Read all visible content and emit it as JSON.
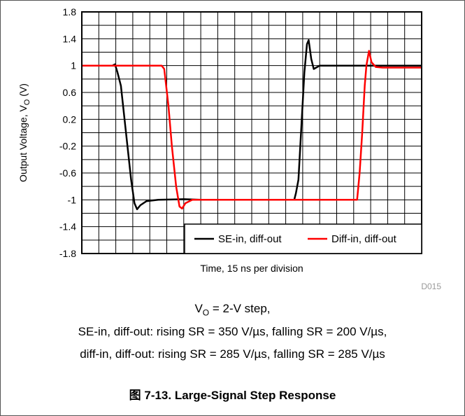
{
  "figure": {
    "id": "D015",
    "caption_vo_main": "V",
    "caption_vo_sub": "O",
    "caption_vo_rest": " = 2-V step,",
    "caption_se": "SE-in, diff-out: rising SR = 350 V/µs, falling SR = 200 V/µs,",
    "caption_diff": "diff-in, diff-out: rising SR = 285 V/µs, falling SR = 285 V/µs",
    "title": "图 7-13. Large-Signal Step Response"
  },
  "colors": {
    "se": "#000000",
    "diff": "#ff0000",
    "grid": "#000000"
  },
  "chart_data": {
    "type": "line",
    "xlabel": "Time, 15 ns per division",
    "ylabel_main": "Output Voltage, V",
    "ylabel_sub": "O",
    "ylabel_unit": " (V)",
    "ylim": [
      -1.8,
      1.8
    ],
    "xlim": [
      0,
      20
    ],
    "x_divisions": 20,
    "grid": true,
    "yticks": [
      "1.8",
      "1.4",
      "1",
      "0.6",
      "0.2",
      "-0.2",
      "-0.6",
      "-1",
      "-1.4",
      "-1.8"
    ],
    "legend_position": "bottom-right",
    "series": [
      {
        "name": "SE-in, diff-out",
        "color": "#000000",
        "points": [
          [
            0,
            1.0
          ],
          [
            1.8,
            1.0
          ],
          [
            1.95,
            1.02
          ],
          [
            2.1,
            0.9
          ],
          [
            2.3,
            0.7
          ],
          [
            2.6,
            0.0
          ],
          [
            2.9,
            -0.7
          ],
          [
            3.1,
            -1.05
          ],
          [
            3.25,
            -1.14
          ],
          [
            3.45,
            -1.08
          ],
          [
            3.8,
            -1.02
          ],
          [
            4.5,
            -1.0
          ],
          [
            6.0,
            -0.99
          ],
          [
            7.0,
            -1.0
          ],
          [
            10.0,
            -1.0
          ],
          [
            12.5,
            -1.0
          ],
          [
            12.6,
            -0.9
          ],
          [
            12.75,
            -0.7
          ],
          [
            12.9,
            0.0
          ],
          [
            13.1,
            0.9
          ],
          [
            13.25,
            1.32
          ],
          [
            13.35,
            1.38
          ],
          [
            13.5,
            1.1
          ],
          [
            13.65,
            0.95
          ],
          [
            14.0,
            1.0
          ],
          [
            15.0,
            1.0
          ],
          [
            16.0,
            1.0
          ],
          [
            20.0,
            1.0
          ]
        ]
      },
      {
        "name": "Diff-in, diff-out",
        "color": "#ff0000",
        "points": [
          [
            0,
            1.0
          ],
          [
            4.7,
            1.0
          ],
          [
            4.85,
            0.95
          ],
          [
            5.1,
            0.4
          ],
          [
            5.3,
            -0.2
          ],
          [
            5.55,
            -0.8
          ],
          [
            5.75,
            -1.1
          ],
          [
            5.9,
            -1.13
          ],
          [
            6.1,
            -1.05
          ],
          [
            6.5,
            -1.0
          ],
          [
            8.0,
            -1.0
          ],
          [
            10.0,
            -1.0
          ],
          [
            16.0,
            -1.0
          ],
          [
            16.2,
            -1.0
          ],
          [
            16.35,
            -0.6
          ],
          [
            16.5,
            0.0
          ],
          [
            16.65,
            0.7
          ],
          [
            16.75,
            1.0
          ],
          [
            16.9,
            1.22
          ],
          [
            17.05,
            1.05
          ],
          [
            17.3,
            0.98
          ],
          [
            17.7,
            0.97
          ],
          [
            20.0,
            0.97
          ]
        ]
      }
    ]
  }
}
